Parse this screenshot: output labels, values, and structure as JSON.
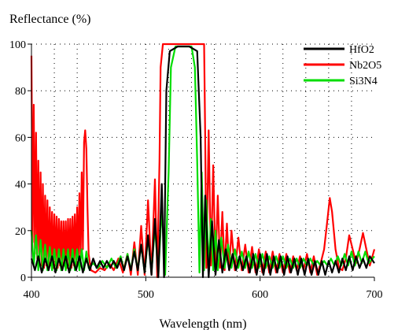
{
  "chart_data": {
    "type": "line",
    "title": "",
    "ylabel": "Reflectance (%)",
    "xlabel": "Wavelength (nm)",
    "xlim": [
      400,
      700
    ],
    "ylim": [
      0,
      100
    ],
    "xticks": [
      400,
      500,
      600,
      700
    ],
    "yticks": [
      0,
      20,
      40,
      60,
      80,
      100
    ],
    "grid": "dotted",
    "legend_position": "top-right",
    "series": [
      {
        "name": "HfO2",
        "color": "#000000",
        "stopband": [
          516,
          548
        ],
        "peak": 99,
        "sidelobe_level": 4,
        "ripple_amplitude": 5,
        "points": [
          [
            400,
            8
          ],
          [
            403,
            3
          ],
          [
            406,
            9
          ],
          [
            409,
            2
          ],
          [
            412,
            8
          ],
          [
            415,
            3
          ],
          [
            418,
            9
          ],
          [
            421,
            2
          ],
          [
            424,
            8
          ],
          [
            427,
            3
          ],
          [
            430,
            9
          ],
          [
            433,
            2
          ],
          [
            436,
            8
          ],
          [
            439,
            3
          ],
          [
            442,
            9
          ],
          [
            445,
            2
          ],
          [
            448,
            8
          ],
          [
            451,
            3
          ],
          [
            454,
            8
          ],
          [
            457,
            4
          ],
          [
            460,
            7
          ],
          [
            463,
            4
          ],
          [
            466,
            7
          ],
          [
            469,
            4
          ],
          [
            472,
            7
          ],
          [
            475,
            4
          ],
          [
            478,
            8
          ],
          [
            481,
            3
          ],
          [
            484,
            9
          ],
          [
            487,
            3
          ],
          [
            490,
            11
          ],
          [
            493,
            3
          ],
          [
            496,
            14
          ],
          [
            499,
            2
          ],
          [
            502,
            18
          ],
          [
            505,
            1
          ],
          [
            508,
            25
          ],
          [
            511,
            0
          ],
          [
            514,
            40
          ],
          [
            516,
            0
          ],
          [
            518,
            80
          ],
          [
            521,
            97
          ],
          [
            528,
            99
          ],
          [
            538,
            99
          ],
          [
            545,
            97
          ],
          [
            548,
            60
          ],
          [
            550,
            0
          ],
          [
            552,
            35
          ],
          [
            555,
            0
          ],
          [
            558,
            24
          ],
          [
            561,
            1
          ],
          [
            564,
            16
          ],
          [
            567,
            2
          ],
          [
            570,
            12
          ],
          [
            573,
            3
          ],
          [
            576,
            10
          ],
          [
            579,
            3
          ],
          [
            582,
            9
          ],
          [
            585,
            3
          ],
          [
            588,
            9
          ],
          [
            591,
            2
          ],
          [
            594,
            10
          ],
          [
            597,
            1
          ],
          [
            600,
            10
          ],
          [
            603,
            1
          ],
          [
            606,
            10
          ],
          [
            609,
            1
          ],
          [
            612,
            9
          ],
          [
            615,
            2
          ],
          [
            618,
            9
          ],
          [
            621,
            1
          ],
          [
            624,
            9
          ],
          [
            627,
            2
          ],
          [
            630,
            8
          ],
          [
            633,
            1
          ],
          [
            636,
            8
          ],
          [
            639,
            1
          ],
          [
            642,
            8
          ],
          [
            645,
            1
          ],
          [
            648,
            7
          ],
          [
            651,
            1
          ],
          [
            654,
            7
          ],
          [
            657,
            1
          ],
          [
            660,
            7
          ],
          [
            663,
            2
          ],
          [
            666,
            7
          ],
          [
            669,
            2
          ],
          [
            672,
            8
          ],
          [
            675,
            3
          ],
          [
            678,
            9
          ],
          [
            681,
            3
          ],
          [
            684,
            9
          ],
          [
            687,
            4
          ],
          [
            690,
            8
          ],
          [
            693,
            4
          ],
          [
            696,
            9
          ],
          [
            700,
            6
          ]
        ]
      },
      {
        "name": "Nb2O5",
        "color": "#ff0000",
        "stopband": [
          512,
          552
        ],
        "peak": 100,
        "sidelobe_level": 10,
        "ripple_amplitude": 20,
        "points": [
          [
            400,
            95
          ],
          [
            401,
            15
          ],
          [
            402,
            74
          ],
          [
            403,
            10
          ],
          [
            404,
            62
          ],
          [
            405,
            8
          ],
          [
            406,
            50
          ],
          [
            407,
            6
          ],
          [
            408,
            45
          ],
          [
            409,
            5
          ],
          [
            410,
            40
          ],
          [
            411,
            4
          ],
          [
            412,
            35
          ],
          [
            413,
            5
          ],
          [
            414,
            33
          ],
          [
            415,
            4
          ],
          [
            416,
            30
          ],
          [
            417,
            5
          ],
          [
            418,
            28
          ],
          [
            419,
            4
          ],
          [
            420,
            27
          ],
          [
            421,
            5
          ],
          [
            422,
            26
          ],
          [
            423,
            4
          ],
          [
            424,
            25
          ],
          [
            425,
            5
          ],
          [
            426,
            24
          ],
          [
            427,
            4
          ],
          [
            428,
            24
          ],
          [
            429,
            5
          ],
          [
            430,
            24
          ],
          [
            431,
            4
          ],
          [
            432,
            25
          ],
          [
            433,
            5
          ],
          [
            434,
            25
          ],
          [
            435,
            4
          ],
          [
            436,
            26
          ],
          [
            437,
            5
          ],
          [
            438,
            27
          ],
          [
            439,
            5
          ],
          [
            440,
            30
          ],
          [
            441,
            6
          ],
          [
            442,
            36
          ],
          [
            443,
            8
          ],
          [
            444,
            45
          ],
          [
            445,
            12
          ],
          [
            446,
            58
          ],
          [
            447,
            63
          ],
          [
            448,
            55
          ],
          [
            449,
            30
          ],
          [
            450,
            10
          ],
          [
            452,
            3
          ],
          [
            456,
            2
          ],
          [
            460,
            4
          ],
          [
            464,
            3
          ],
          [
            468,
            6
          ],
          [
            472,
            3
          ],
          [
            476,
            8
          ],
          [
            480,
            2
          ],
          [
            484,
            10
          ],
          [
            487,
            1
          ],
          [
            490,
            15
          ],
          [
            493,
            1
          ],
          [
            496,
            22
          ],
          [
            499,
            1
          ],
          [
            502,
            33
          ],
          [
            505,
            1
          ],
          [
            508,
            42
          ],
          [
            510,
            0
          ],
          [
            512,
            50
          ],
          [
            513,
            90
          ],
          [
            515,
            100
          ],
          [
            530,
            100
          ],
          [
            548,
            100
          ],
          [
            551,
            100
          ],
          [
            552,
            60
          ],
          [
            553,
            4
          ],
          [
            555,
            63
          ],
          [
            557,
            5
          ],
          [
            559,
            48
          ],
          [
            561,
            4
          ],
          [
            563,
            35
          ],
          [
            565,
            4
          ],
          [
            567,
            28
          ],
          [
            569,
            3
          ],
          [
            571,
            23
          ],
          [
            573,
            3
          ],
          [
            575,
            20
          ],
          [
            578,
            3
          ],
          [
            581,
            17
          ],
          [
            584,
            3
          ],
          [
            587,
            14
          ],
          [
            590,
            2
          ],
          [
            593,
            13
          ],
          [
            596,
            2
          ],
          [
            599,
            12
          ],
          [
            602,
            2
          ],
          [
            605,
            11
          ],
          [
            608,
            2
          ],
          [
            611,
            11
          ],
          [
            614,
            2
          ],
          [
            617,
            10
          ],
          [
            620,
            2
          ],
          [
            623,
            10
          ],
          [
            626,
            2
          ],
          [
            629,
            9
          ],
          [
            632,
            3
          ],
          [
            635,
            9
          ],
          [
            638,
            3
          ],
          [
            641,
            10
          ],
          [
            644,
            2
          ],
          [
            647,
            9
          ],
          [
            650,
            1
          ],
          [
            653,
            6
          ],
          [
            656,
            12
          ],
          [
            659,
            25
          ],
          [
            661,
            34
          ],
          [
            663,
            28
          ],
          [
            666,
            12
          ],
          [
            669,
            4
          ],
          [
            672,
            3
          ],
          [
            675,
            8
          ],
          [
            678,
            18
          ],
          [
            681,
            12
          ],
          [
            684,
            6
          ],
          [
            687,
            12
          ],
          [
            690,
            19
          ],
          [
            693,
            12
          ],
          [
            696,
            5
          ],
          [
            700,
            12
          ]
        ]
      },
      {
        "name": "Si3N4",
        "color": "#00dd00",
        "stopband": [
          520,
          545
        ],
        "peak": 99,
        "sidelobe_level": 6,
        "ripple_amplitude": 6,
        "points": [
          [
            400,
            20
          ],
          [
            402,
            5
          ],
          [
            404,
            18
          ],
          [
            406,
            3
          ],
          [
            408,
            16
          ],
          [
            410,
            3
          ],
          [
            412,
            14
          ],
          [
            414,
            3
          ],
          [
            416,
            13
          ],
          [
            418,
            3
          ],
          [
            420,
            12
          ],
          [
            422,
            3
          ],
          [
            424,
            12
          ],
          [
            426,
            3
          ],
          [
            428,
            12
          ],
          [
            430,
            3
          ],
          [
            432,
            12
          ],
          [
            434,
            3
          ],
          [
            436,
            12
          ],
          [
            438,
            3
          ],
          [
            440,
            12
          ],
          [
            442,
            3
          ],
          [
            444,
            12
          ],
          [
            446,
            3
          ],
          [
            448,
            11
          ],
          [
            450,
            4
          ],
          [
            454,
            6
          ],
          [
            458,
            4
          ],
          [
            462,
            7
          ],
          [
            466,
            4
          ],
          [
            470,
            8
          ],
          [
            474,
            4
          ],
          [
            478,
            9
          ],
          [
            481,
            3
          ],
          [
            484,
            10
          ],
          [
            487,
            3
          ],
          [
            490,
            12
          ],
          [
            493,
            3
          ],
          [
            496,
            14
          ],
          [
            499,
            2
          ],
          [
            502,
            17
          ],
          [
            505,
            2
          ],
          [
            508,
            22
          ],
          [
            511,
            1
          ],
          [
            514,
            30
          ],
          [
            517,
            1
          ],
          [
            520,
            45
          ],
          [
            522,
            90
          ],
          [
            526,
            99
          ],
          [
            540,
            99
          ],
          [
            543,
            90
          ],
          [
            545,
            50
          ],
          [
            547,
            2
          ],
          [
            549,
            45
          ],
          [
            551,
            3
          ],
          [
            553,
            33
          ],
          [
            555,
            3
          ],
          [
            557,
            25
          ],
          [
            559,
            3
          ],
          [
            561,
            20
          ],
          [
            563,
            3
          ],
          [
            566,
            17
          ],
          [
            569,
            4
          ],
          [
            572,
            14
          ],
          [
            575,
            4
          ],
          [
            578,
            12
          ],
          [
            581,
            4
          ],
          [
            584,
            11
          ],
          [
            587,
            4
          ],
          [
            590,
            11
          ],
          [
            593,
            4
          ],
          [
            596,
            10
          ],
          [
            599,
            4
          ],
          [
            602,
            10
          ],
          [
            605,
            4
          ],
          [
            608,
            9
          ],
          [
            611,
            4
          ],
          [
            614,
            9
          ],
          [
            617,
            4
          ],
          [
            620,
            9
          ],
          [
            623,
            4
          ],
          [
            626,
            8
          ],
          [
            629,
            4
          ],
          [
            632,
            8
          ],
          [
            635,
            4
          ],
          [
            638,
            8
          ],
          [
            641,
            5
          ],
          [
            644,
            8
          ],
          [
            647,
            5
          ],
          [
            650,
            7
          ],
          [
            653,
            5
          ],
          [
            656,
            7
          ],
          [
            659,
            5
          ],
          [
            662,
            8
          ],
          [
            665,
            5
          ],
          [
            668,
            9
          ],
          [
            671,
            5
          ],
          [
            674,
            10
          ],
          [
            677,
            5
          ],
          [
            680,
            11
          ],
          [
            683,
            5
          ],
          [
            686,
            11
          ],
          [
            689,
            6
          ],
          [
            692,
            11
          ],
          [
            695,
            6
          ],
          [
            700,
            9
          ]
        ]
      }
    ]
  }
}
